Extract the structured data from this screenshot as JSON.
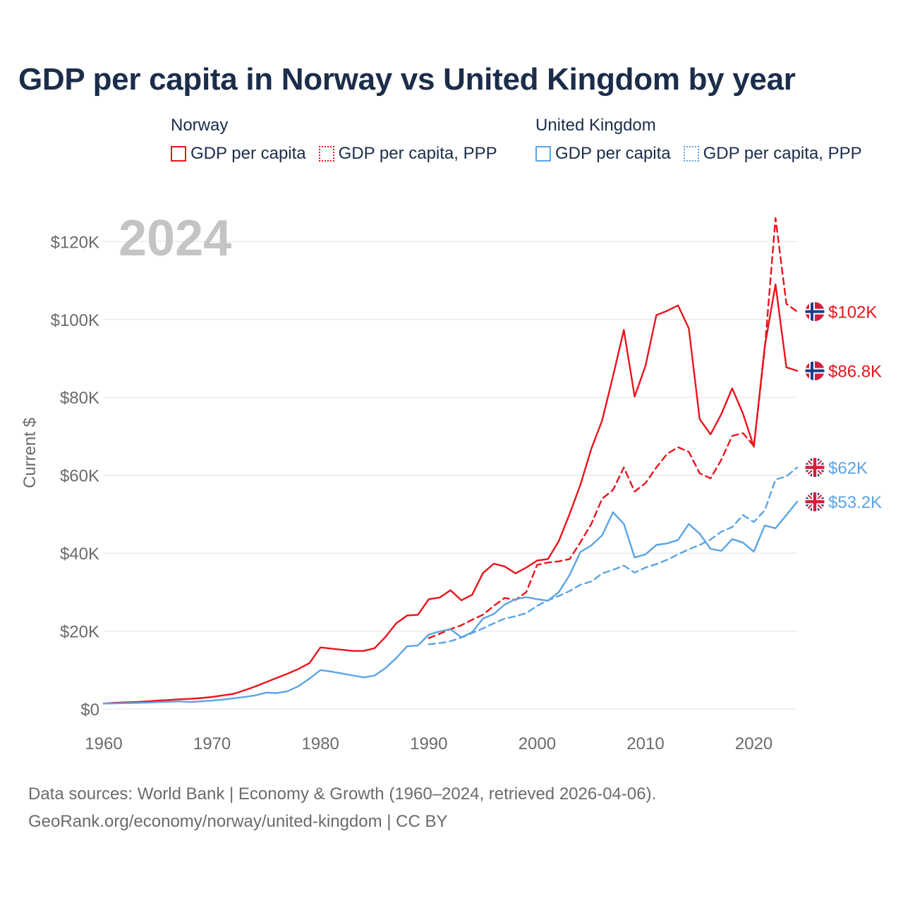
{
  "title": "GDP per capita in Norway vs United Kingdom by year",
  "legend": {
    "groups": [
      {
        "name": "Norway",
        "items": [
          "GDP per capita",
          "GDP per capita, PPP"
        ]
      },
      {
        "name": "United Kingdom",
        "items": [
          "GDP per capita",
          "GDP per capita, PPP"
        ]
      }
    ]
  },
  "footer": {
    "line1": "Data sources: World Bank | Economy & Growth (1960–2024, retrieved 2026-04-06).",
    "line2": "GeoRank.org/economy/norway/united-kingdom | CC BY"
  },
  "colors": {
    "norway": "#e8141c",
    "uk": "#5aa4e6",
    "year_watermark": "#c4c4c4",
    "grid": "#e6e6e6",
    "axis_text": "#6b6b6b"
  },
  "chart_data": {
    "type": "line",
    "year_label": "2024",
    "ylabel": "Current $",
    "xlim": [
      1960,
      2024
    ],
    "ylim": [
      0,
      130000
    ],
    "x_ticks": [
      1960,
      1970,
      1980,
      1990,
      2000,
      2010,
      2020
    ],
    "x_tick_labels": [
      "1960",
      "1970",
      "1980",
      "1990",
      "2000",
      "2010",
      "2020"
    ],
    "y_ticks": [
      0,
      20000,
      40000,
      60000,
      80000,
      100000,
      120000
    ],
    "y_tick_labels": [
      "$0",
      "$20K",
      "$40K",
      "$60K",
      "$80K",
      "$100K",
      "$120K"
    ],
    "grid": true,
    "series": [
      {
        "name": "Norway GDP per capita",
        "country": "Norway",
        "color": "#e8141c",
        "dash": "solid",
        "flag": "norway-flag-icon",
        "end_label": "$86.8K",
        "x": [
          1960,
          1961,
          1962,
          1963,
          1964,
          1965,
          1966,
          1967,
          1968,
          1969,
          1970,
          1971,
          1972,
          1973,
          1974,
          1975,
          1976,
          1977,
          1978,
          1979,
          1980,
          1981,
          1982,
          1983,
          1984,
          1985,
          1986,
          1987,
          1988,
          1989,
          1990,
          1991,
          1992,
          1993,
          1994,
          1995,
          1996,
          1997,
          1998,
          1999,
          2000,
          2001,
          2002,
          2003,
          2004,
          2005,
          2006,
          2007,
          2008,
          2009,
          2010,
          2011,
          2012,
          2013,
          2014,
          2015,
          2016,
          2017,
          2018,
          2019,
          2020,
          2021,
          2022,
          2023,
          2024
        ],
        "values": [
          1400,
          1600,
          1700,
          1800,
          1950,
          2150,
          2300,
          2500,
          2600,
          2800,
          3100,
          3500,
          3900,
          4800,
          5800,
          6900,
          8000,
          9100,
          10300,
          11800,
          15800,
          15500,
          15200,
          14900,
          14900,
          15600,
          18500,
          22000,
          24000,
          24200,
          28200,
          28600,
          30500,
          27900,
          29300,
          34900,
          37300,
          36600,
          34800,
          36300,
          38100,
          38500,
          43100,
          50100,
          57600,
          66800,
          74100,
          85400,
          97300,
          80200,
          88100,
          101100,
          102200,
          103600,
          97700,
          74400,
          70500,
          75700,
          82300,
          75800,
          67300,
          93000,
          109000,
          87700,
          86800
        ]
      },
      {
        "name": "Norway GDP per capita, PPP",
        "country": "Norway",
        "color": "#e8141c",
        "dash": "dashed",
        "flag": "norway-flag-icon",
        "end_label": "$102K",
        "x": [
          1990,
          1991,
          1992,
          1993,
          1994,
          1995,
          1996,
          1997,
          1998,
          1999,
          2000,
          2001,
          2002,
          2003,
          2004,
          2005,
          2006,
          2007,
          2008,
          2009,
          2010,
          2011,
          2012,
          2013,
          2014,
          2015,
          2016,
          2017,
          2018,
          2019,
          2020,
          2021,
          2022,
          2023,
          2024
        ],
        "values": [
          18200,
          19300,
          20500,
          21500,
          22900,
          24200,
          26500,
          28500,
          28000,
          30000,
          37000,
          37600,
          37900,
          38500,
          42800,
          47500,
          54000,
          56200,
          62000,
          55800,
          58000,
          62000,
          65500,
          67200,
          66000,
          60500,
          59200,
          64000,
          70100,
          70800,
          67500,
          92300,
          126000,
          104000,
          102000
        ]
      },
      {
        "name": "United Kingdom GDP per capita",
        "country": "United Kingdom",
        "color": "#5aa4e6",
        "dash": "solid",
        "flag": "uk-flag-icon",
        "end_label": "$53.2K",
        "x": [
          1960,
          1961,
          1962,
          1963,
          1964,
          1965,
          1966,
          1967,
          1968,
          1969,
          1970,
          1971,
          1972,
          1973,
          1974,
          1975,
          1976,
          1977,
          1978,
          1979,
          1980,
          1981,
          1982,
          1983,
          1984,
          1985,
          1986,
          1987,
          1988,
          1989,
          1990,
          1991,
          1992,
          1993,
          1994,
          1995,
          1996,
          1997,
          1998,
          1999,
          2000,
          2001,
          2002,
          2003,
          2004,
          2005,
          2006,
          2007,
          2008,
          2009,
          2010,
          2011,
          2012,
          2013,
          2014,
          2015,
          2016,
          2017,
          2018,
          2019,
          2020,
          2021,
          2022,
          2023,
          2024
        ],
        "values": [
          1400,
          1450,
          1500,
          1550,
          1650,
          1750,
          1850,
          1950,
          1800,
          1950,
          2150,
          2400,
          2750,
          3100,
          3500,
          4200,
          4100,
          4600,
          5900,
          7800,
          10000,
          9600,
          9100,
          8600,
          8100,
          8600,
          10500,
          13100,
          16100,
          16300,
          19100,
          19900,
          20500,
          18400,
          19700,
          23200,
          24400,
          26800,
          28200,
          28700,
          28200,
          27800,
          30000,
          34400,
          40300,
          42000,
          44600,
          50500,
          47500,
          38900,
          39700,
          42100,
          42500,
          43400,
          47500,
          45000,
          41100,
          40600,
          43600,
          42700,
          40400,
          47100,
          46400,
          49800,
          53200
        ]
      },
      {
        "name": "United Kingdom GDP per capita, PPP",
        "country": "United Kingdom",
        "color": "#5aa4e6",
        "dash": "dashed",
        "flag": "uk-flag-icon",
        "end_label": "$62K",
        "x": [
          1990,
          1991,
          1992,
          1993,
          1994,
          1995,
          1996,
          1997,
          1998,
          1999,
          2000,
          2001,
          2002,
          2003,
          2004,
          2005,
          2006,
          2007,
          2008,
          2009,
          2010,
          2011,
          2012,
          2013,
          2014,
          2015,
          2016,
          2017,
          2018,
          2019,
          2020,
          2021,
          2022,
          2023,
          2024
        ],
        "values": [
          16600,
          16900,
          17400,
          18300,
          19500,
          20700,
          22000,
          23200,
          23800,
          24600,
          26500,
          27900,
          29000,
          30300,
          31900,
          32700,
          34800,
          35700,
          36800,
          35000,
          36300,
          37200,
          38300,
          39700,
          41000,
          42100,
          43500,
          45500,
          46700,
          49800,
          48000,
          51000,
          58900,
          59700,
          62000
        ]
      }
    ]
  }
}
